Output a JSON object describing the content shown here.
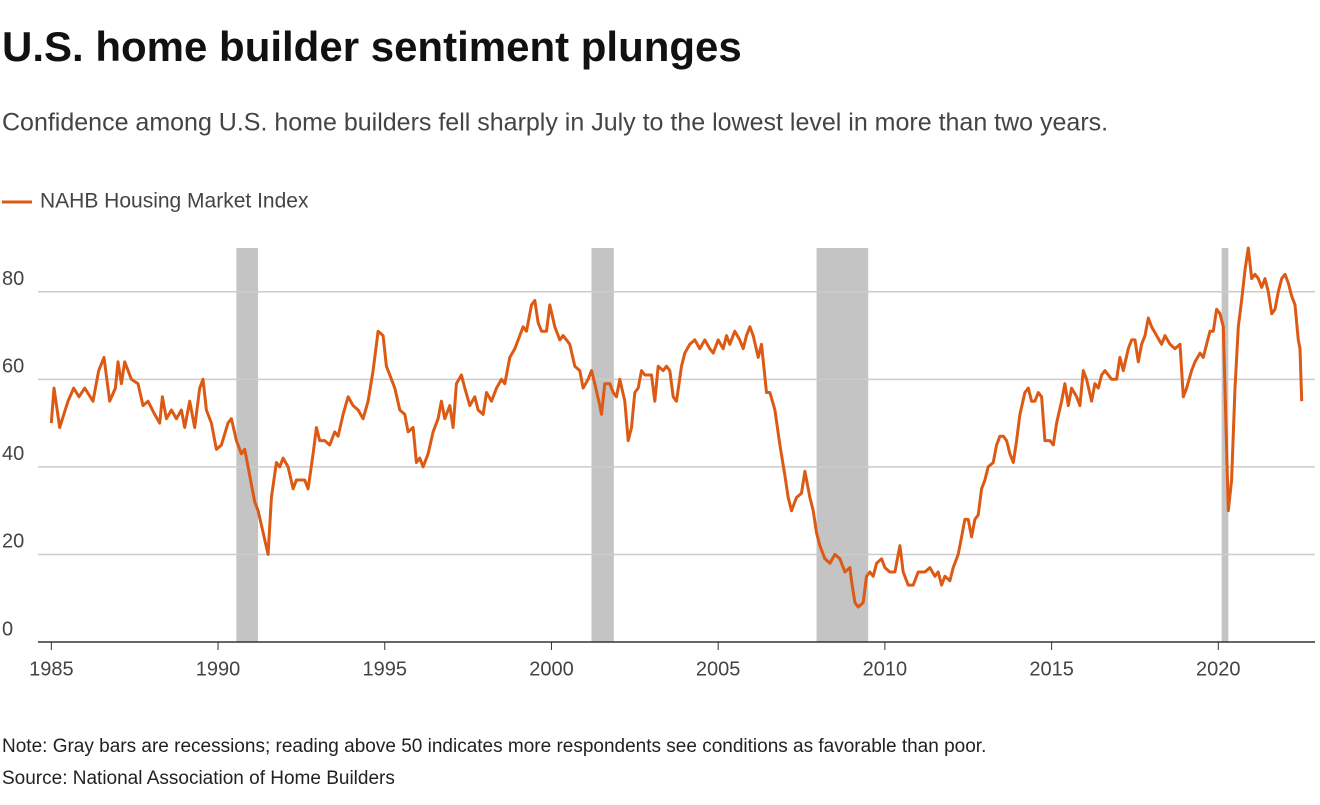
{
  "chart_data": {
    "type": "line",
    "title": "U.S. home builder sentiment plunges",
    "subtitle": "Confidence among U.S. home builders fell sharply in July to the lowest level in more than two years.",
    "note": "Note: Gray bars are recessions; reading above 50 indicates more respondents see conditions as favorable than poor.",
    "source": "Source: National Association of Home Builders",
    "x": [
      1985.0,
      1985.08,
      1985.25,
      1985.5,
      1985.67,
      1985.83,
      1986.0,
      1986.25,
      1986.42,
      1986.58,
      1986.75,
      1986.92,
      1987.0,
      1987.1,
      1987.2,
      1987.4,
      1987.6,
      1987.75,
      1987.9,
      1988.1,
      1988.25,
      1988.33,
      1988.45,
      1988.6,
      1988.75,
      1988.9,
      1989.0,
      1989.15,
      1989.3,
      1989.45,
      1989.55,
      1989.65,
      1989.8,
      1989.95,
      1990.1,
      1990.3,
      1990.4,
      1990.55,
      1990.7,
      1990.8,
      1990.9,
      1991.0,
      1991.1,
      1991.2,
      1991.35,
      1991.5,
      1991.6,
      1991.75,
      1991.85,
      1991.95,
      1992.1,
      1992.25,
      1992.35,
      1992.6,
      1992.7,
      1992.85,
      1992.95,
      1993.05,
      1993.2,
      1993.35,
      1993.5,
      1993.6,
      1993.75,
      1993.9,
      1994.05,
      1994.2,
      1994.35,
      1994.5,
      1994.65,
      1994.8,
      1994.95,
      1995.05,
      1995.15,
      1995.3,
      1995.45,
      1995.6,
      1995.7,
      1995.85,
      1995.95,
      1996.05,
      1996.15,
      1996.3,
      1996.45,
      1996.6,
      1996.7,
      1996.8,
      1996.95,
      1997.05,
      1997.15,
      1997.3,
      1997.4,
      1997.55,
      1997.7,
      1997.8,
      1997.95,
      1998.05,
      1998.2,
      1998.35,
      1998.5,
      1998.6,
      1998.75,
      1998.9,
      1999.05,
      1999.15,
      1999.25,
      1999.4,
      1999.5,
      1999.6,
      1999.7,
      1999.85,
      1999.95,
      2000.1,
      2000.25,
      2000.35,
      2000.55,
      2000.7,
      2000.85,
      2000.95,
      2001.1,
      2001.2,
      2001.3,
      2001.45,
      2001.5,
      2001.6,
      2001.75,
      2001.85,
      2001.95,
      2002.05,
      2002.2,
      2002.3,
      2002.4,
      2002.5,
      2002.6,
      2002.7,
      2002.8,
      2003.0,
      2003.1,
      2003.2,
      2003.35,
      2003.45,
      2003.55,
      2003.65,
      2003.75,
      2003.9,
      2004.0,
      2004.15,
      2004.3,
      2004.45,
      2004.6,
      2004.75,
      2004.85,
      2005.0,
      2005.15,
      2005.25,
      2005.35,
      2005.5,
      2005.65,
      2005.75,
      2005.85,
      2005.95,
      2006.05,
      2006.2,
      2006.3,
      2006.45,
      2006.55,
      2006.7,
      2006.85,
      2007.0,
      2007.1,
      2007.2,
      2007.35,
      2007.5,
      2007.6,
      2007.75,
      2007.85,
      2007.95,
      2008.05,
      2008.2,
      2008.35,
      2008.5,
      2008.65,
      2008.8,
      2008.95,
      2009.0,
      2009.1,
      2009.2,
      2009.35,
      2009.45,
      2009.55,
      2009.65,
      2009.75,
      2009.9,
      2010.0,
      2010.15,
      2010.3,
      2010.45,
      2010.55,
      2010.7,
      2010.85,
      2011.0,
      2011.2,
      2011.35,
      2011.5,
      2011.6,
      2011.7,
      2011.8,
      2011.95,
      2012.05,
      2012.2,
      2012.3,
      2012.4,
      2012.5,
      2012.6,
      2012.7,
      2012.8,
      2012.9,
      2013.0,
      2013.1,
      2013.25,
      2013.35,
      2013.45,
      2013.55,
      2013.65,
      2013.75,
      2013.85,
      2013.95,
      2014.05,
      2014.2,
      2014.3,
      2014.4,
      2014.5,
      2014.6,
      2014.7,
      2014.8,
      2014.95,
      2015.05,
      2015.15,
      2015.3,
      2015.4,
      2015.5,
      2015.6,
      2015.75,
      2015.85,
      2015.95,
      2016.05,
      2016.2,
      2016.3,
      2016.4,
      2016.5,
      2016.6,
      2016.7,
      2016.8,
      2016.95,
      2017.05,
      2017.15,
      2017.3,
      2017.4,
      2017.5,
      2017.6,
      2017.7,
      2017.8,
      2017.9,
      2018.0,
      2018.15,
      2018.3,
      2018.4,
      2018.55,
      2018.7,
      2018.85,
      2018.95,
      2019.05,
      2019.2,
      2019.3,
      2019.45,
      2019.55,
      2019.65,
      2019.75,
      2019.85,
      2019.95,
      2020.05,
      2020.15,
      2020.3,
      2020.4,
      2020.5,
      2020.6,
      2020.7,
      2020.8,
      2020.9,
      2021.0,
      2021.1,
      2021.2,
      2021.3,
      2021.4,
      2021.5,
      2021.6,
      2021.7,
      2021.8,
      2021.9,
      2022.0,
      2022.1,
      2022.2,
      2022.3,
      2022.4,
      2022.45,
      2022.5
    ],
    "series": [
      {
        "name": "NAHB Housing Market Index",
        "color": "#dc5a14",
        "values": [
          50,
          58,
          49,
          55,
          58,
          56,
          58,
          55,
          62,
          65,
          55,
          58,
          64,
          59,
          64,
          60,
          59,
          54,
          55,
          52,
          50,
          56,
          51,
          53,
          51,
          53,
          49,
          55,
          49,
          58,
          60,
          53,
          50,
          44,
          45,
          50,
          51,
          46,
          43,
          44,
          40,
          36,
          32,
          30,
          25,
          20,
          33,
          41,
          40,
          42,
          40,
          35,
          37,
          37,
          35,
          43,
          49,
          46,
          46,
          45,
          48,
          47,
          52,
          56,
          54,
          53,
          51,
          55,
          62,
          71,
          70,
          63,
          61,
          58,
          53,
          52,
          48,
          49,
          41,
          42,
          40,
          43,
          48,
          51,
          55,
          51,
          54,
          49,
          59,
          61,
          58,
          54,
          56,
          53,
          52,
          57,
          55,
          58,
          60,
          59,
          65,
          67,
          70,
          72,
          71,
          77,
          78,
          73,
          71,
          71,
          77,
          72,
          69,
          70,
          68,
          63,
          62,
          58,
          60,
          62,
          59,
          54,
          52,
          59,
          59,
          57,
          56,
          60,
          55,
          46,
          49,
          57,
          58,
          62,
          61,
          61,
          55,
          63,
          62,
          63,
          62,
          56,
          55,
          63,
          66,
          68,
          69,
          67,
          69,
          67,
          66,
          69,
          67,
          70,
          68,
          71,
          69,
          67,
          70,
          72,
          70,
          65,
          68,
          57,
          57,
          53,
          45,
          38,
          33,
          30,
          33,
          34,
          39,
          33,
          30,
          25,
          22,
          19,
          18,
          20,
          19,
          16,
          17,
          14,
          9,
          8,
          9,
          15,
          16,
          15,
          18,
          19,
          17,
          16,
          16,
          22,
          16,
          13,
          13,
          16,
          16,
          17,
          15,
          16,
          13,
          15,
          14,
          17,
          20,
          24,
          28,
          28,
          24,
          28,
          29,
          35,
          37,
          40,
          41,
          45,
          47,
          47,
          46,
          43,
          41,
          46,
          52,
          57,
          58,
          55,
          55,
          57,
          56,
          46,
          46,
          45,
          50,
          55,
          59,
          54,
          58,
          56,
          54,
          62,
          60,
          55,
          59,
          58,
          61,
          62,
          61,
          60,
          60,
          65,
          62,
          67,
          69,
          69,
          64,
          68,
          70,
          74,
          72,
          70,
          68,
          70,
          68,
          67,
          68,
          56,
          58,
          62,
          64,
          66,
          65,
          68,
          71,
          71,
          76,
          75,
          72,
          30,
          37,
          58,
          72,
          78,
          85,
          90,
          83,
          84,
          83,
          81,
          83,
          80,
          75,
          76,
          80,
          83,
          84,
          82,
          79,
          77,
          69,
          67,
          55
        ]
      }
    ],
    "recessions": [
      [
        1990.55,
        1991.2
      ],
      [
        2001.2,
        2001.87
      ],
      [
        2007.95,
        2009.5
      ],
      [
        2020.1,
        2020.3
      ]
    ],
    "recession_color": "#c4c4c4",
    "xlim": [
      1984.6,
      2022.9
    ],
    "xticks": [
      1985,
      1990,
      1995,
      2000,
      2005,
      2010,
      2015,
      2020
    ],
    "ylim": [
      0,
      90
    ],
    "yticks": [
      0,
      20,
      40,
      60,
      80
    ],
    "grid": true
  }
}
